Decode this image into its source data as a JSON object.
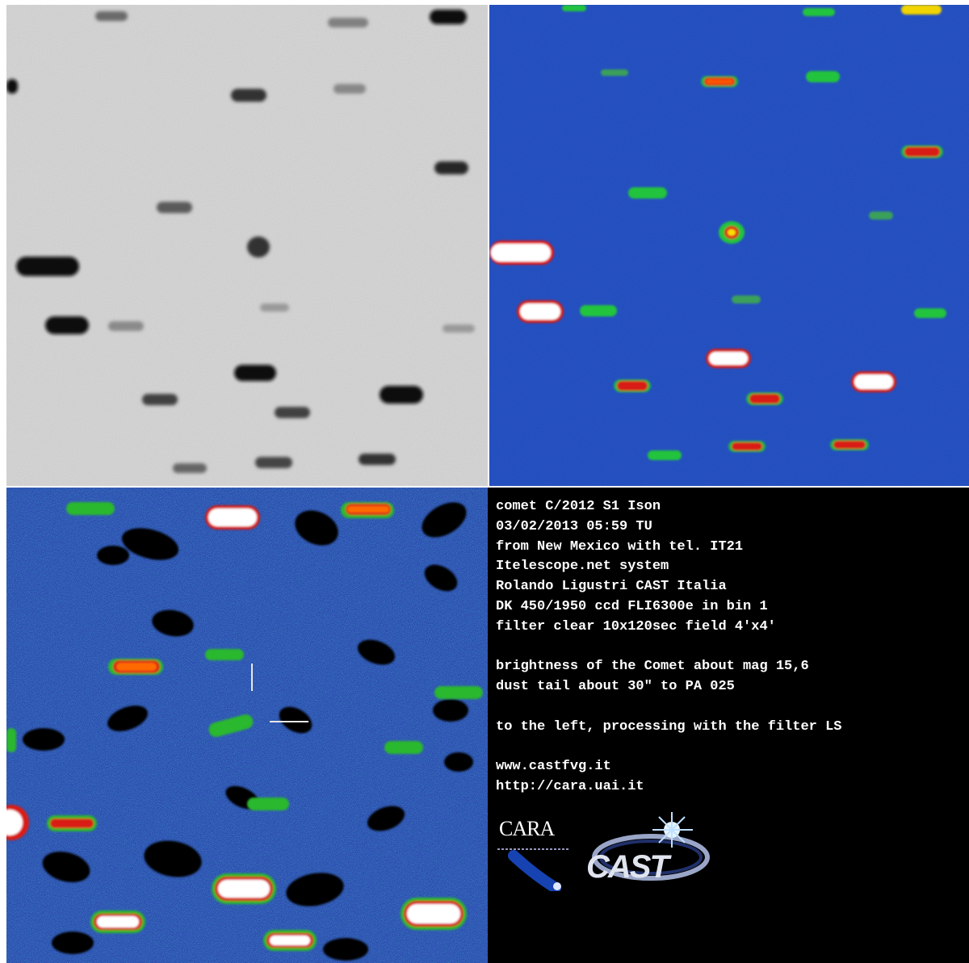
{
  "panels": {
    "negative_name": "negative-star-field",
    "falsecolor_name": "false-color-star-field",
    "ls_name": "ls-filtered-star-field"
  },
  "caption": {
    "lines": [
      "comet C/2012 S1 Ison",
      "03/02/2013 05:59 TU",
      "from New Mexico with tel. IT21",
      "Itelescope.net system",
      "Rolando Ligustri CAST Italia",
      "DK 450/1950 ccd FLI6300e in bin 1",
      "filter clear 10x120sec field 4'x4'",
      "",
      "brightness of the Comet about mag 15,6",
      "dust tail about 30\" to PA 025",
      "",
      "to the left, processing with the filter LS",
      "",
      "www.castfvg.it",
      "http://cara.uai.it"
    ]
  },
  "logos": {
    "cara": "CARA",
    "cast": "CAST"
  },
  "colors": {
    "background_neg": "#d9d9d9",
    "background_false": "#1e3fae",
    "background_ls": "#1a2f9a",
    "text_panel": "#000000",
    "caption_text": "#ffffff"
  }
}
